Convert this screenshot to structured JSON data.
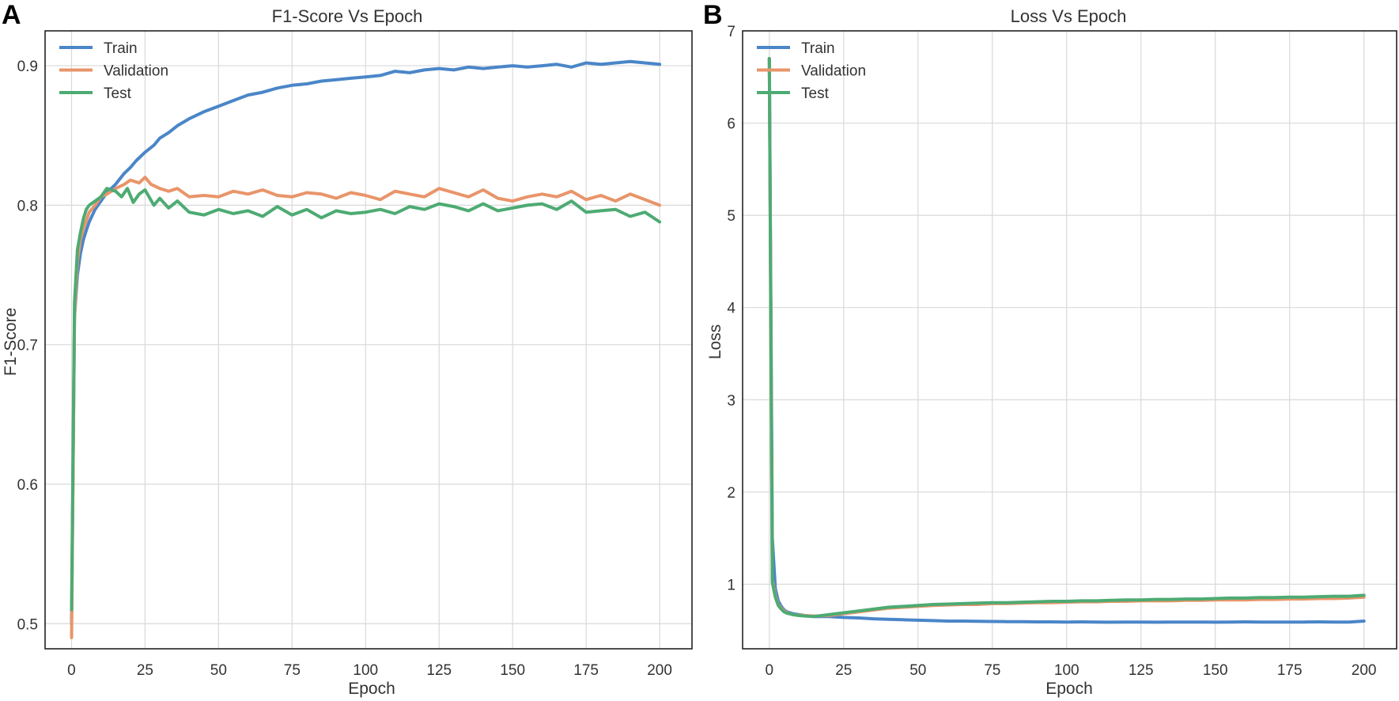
{
  "chart_data": [
    {
      "type": "line",
      "panel": "A",
      "title": "F1-Score Vs Epoch",
      "xlabel": "Epoch",
      "ylabel": "F1-Score",
      "xlim": [
        -9,
        211
      ],
      "ylim": [
        0.482,
        0.925
      ],
      "xticks": [
        0,
        25,
        50,
        75,
        100,
        125,
        150,
        175,
        200
      ],
      "yticks": [
        0.5,
        0.6,
        0.7,
        0.8,
        0.9
      ],
      "ytick_labels": [
        "0.5",
        "0.6",
        "0.7",
        "0.8",
        "0.9"
      ],
      "grid": true,
      "legend_position": "top-left",
      "series": [
        {
          "name": "Train",
          "color": "#4a86c8",
          "x": [
            0,
            1,
            2,
            3,
            4,
            5,
            6,
            8,
            10,
            12,
            15,
            18,
            20,
            22,
            25,
            28,
            30,
            33,
            36,
            40,
            45,
            50,
            55,
            60,
            65,
            70,
            75,
            80,
            85,
            90,
            95,
            100,
            105,
            110,
            115,
            120,
            125,
            130,
            135,
            140,
            145,
            150,
            155,
            160,
            165,
            170,
            175,
            180,
            185,
            190,
            195,
            200
          ],
          "y": [
            0.5,
            0.72,
            0.75,
            0.765,
            0.775,
            0.782,
            0.788,
            0.797,
            0.803,
            0.809,
            0.815,
            0.823,
            0.827,
            0.832,
            0.838,
            0.843,
            0.848,
            0.852,
            0.857,
            0.862,
            0.867,
            0.871,
            0.875,
            0.879,
            0.881,
            0.884,
            0.886,
            0.887,
            0.889,
            0.89,
            0.891,
            0.892,
            0.893,
            0.896,
            0.895,
            0.897,
            0.898,
            0.897,
            0.899,
            0.898,
            0.899,
            0.9,
            0.899,
            0.9,
            0.901,
            0.899,
            0.902,
            0.901,
            0.902,
            0.903,
            0.902,
            0.901
          ]
        },
        {
          "name": "Validation",
          "color": "#e8956a",
          "x": [
            0,
            1,
            2,
            3,
            4,
            5,
            6,
            8,
            10,
            12,
            15,
            18,
            20,
            23,
            25,
            27,
            30,
            33,
            36,
            40,
            45,
            50,
            55,
            60,
            65,
            70,
            75,
            80,
            85,
            90,
            95,
            100,
            105,
            110,
            115,
            120,
            125,
            130,
            135,
            140,
            145,
            150,
            155,
            160,
            165,
            170,
            175,
            180,
            185,
            190,
            195,
            200
          ],
          "y": [
            0.49,
            0.72,
            0.76,
            0.775,
            0.783,
            0.789,
            0.795,
            0.8,
            0.806,
            0.808,
            0.812,
            0.815,
            0.818,
            0.816,
            0.82,
            0.815,
            0.812,
            0.81,
            0.812,
            0.806,
            0.807,
            0.806,
            0.81,
            0.808,
            0.811,
            0.807,
            0.806,
            0.809,
            0.808,
            0.805,
            0.809,
            0.807,
            0.804,
            0.81,
            0.808,
            0.806,
            0.812,
            0.809,
            0.806,
            0.811,
            0.805,
            0.803,
            0.806,
            0.808,
            0.806,
            0.81,
            0.804,
            0.807,
            0.803,
            0.808,
            0.804,
            0.8
          ]
        },
        {
          "name": "Test",
          "color": "#4dab73",
          "x": [
            0,
            1,
            2,
            3,
            4,
            5,
            6,
            8,
            10,
            12,
            15,
            17,
            19,
            21,
            23,
            25,
            28,
            30,
            33,
            36,
            40,
            45,
            50,
            55,
            60,
            65,
            70,
            75,
            80,
            85,
            90,
            95,
            100,
            105,
            110,
            115,
            120,
            125,
            130,
            135,
            140,
            145,
            150,
            155,
            160,
            165,
            170,
            175,
            180,
            185,
            190,
            195,
            200
          ],
          "y": [
            0.51,
            0.73,
            0.768,
            0.78,
            0.79,
            0.797,
            0.8,
            0.803,
            0.806,
            0.812,
            0.81,
            0.806,
            0.812,
            0.802,
            0.808,
            0.811,
            0.8,
            0.805,
            0.798,
            0.803,
            0.795,
            0.793,
            0.797,
            0.794,
            0.796,
            0.792,
            0.799,
            0.793,
            0.797,
            0.791,
            0.796,
            0.794,
            0.795,
            0.797,
            0.794,
            0.799,
            0.797,
            0.801,
            0.799,
            0.796,
            0.801,
            0.796,
            0.798,
            0.8,
            0.801,
            0.797,
            0.803,
            0.795,
            0.796,
            0.797,
            0.792,
            0.795,
            0.788
          ]
        }
      ]
    },
    {
      "type": "line",
      "panel": "B",
      "title": "Loss Vs Epoch",
      "xlabel": "Epoch",
      "ylabel": "Loss",
      "xlim": [
        -9,
        211
      ],
      "ylim": [
        0.3,
        7.0
      ],
      "xticks": [
        0,
        25,
        50,
        75,
        100,
        125,
        150,
        175,
        200
      ],
      "yticks": [
        1,
        2,
        3,
        4,
        5,
        6,
        7
      ],
      "ytick_labels": [
        "1",
        "2",
        "3",
        "4",
        "5",
        "6",
        "7"
      ],
      "grid": true,
      "legend_position": "top-left",
      "series": [
        {
          "name": "Train",
          "color": "#4a86c8",
          "x": [
            0,
            1,
            2,
            3,
            4,
            5,
            6,
            8,
            10,
            12,
            15,
            20,
            25,
            30,
            35,
            40,
            45,
            50,
            55,
            60,
            65,
            70,
            75,
            80,
            85,
            90,
            95,
            100,
            105,
            110,
            115,
            120,
            125,
            130,
            135,
            140,
            145,
            150,
            155,
            160,
            165,
            170,
            175,
            180,
            185,
            190,
            195,
            200
          ],
          "y": [
            6.7,
            1.5,
            0.95,
            0.82,
            0.76,
            0.72,
            0.7,
            0.68,
            0.67,
            0.66,
            0.65,
            0.65,
            0.64,
            0.635,
            0.625,
            0.62,
            0.615,
            0.61,
            0.605,
            0.6,
            0.6,
            0.598,
            0.596,
            0.594,
            0.594,
            0.592,
            0.592,
            0.59,
            0.592,
            0.59,
            0.588,
            0.59,
            0.59,
            0.588,
            0.59,
            0.59,
            0.59,
            0.588,
            0.59,
            0.592,
            0.59,
            0.59,
            0.59,
            0.59,
            0.592,
            0.59,
            0.59,
            0.6
          ]
        },
        {
          "name": "Validation",
          "color": "#e8956a",
          "x": [
            0,
            1,
            2,
            3,
            4,
            5,
            6,
            8,
            10,
            12,
            15,
            20,
            25,
            30,
            35,
            40,
            45,
            50,
            55,
            60,
            65,
            70,
            75,
            80,
            85,
            90,
            95,
            100,
            105,
            110,
            115,
            120,
            125,
            130,
            135,
            140,
            145,
            150,
            155,
            160,
            165,
            170,
            175,
            180,
            185,
            190,
            195,
            200
          ],
          "y": [
            6.7,
            1.05,
            0.88,
            0.78,
            0.74,
            0.71,
            0.69,
            0.67,
            0.665,
            0.66,
            0.655,
            0.66,
            0.68,
            0.7,
            0.72,
            0.74,
            0.75,
            0.76,
            0.77,
            0.775,
            0.78,
            0.78,
            0.79,
            0.79,
            0.795,
            0.8,
            0.8,
            0.805,
            0.81,
            0.81,
            0.815,
            0.815,
            0.82,
            0.82,
            0.82,
            0.825,
            0.825,
            0.83,
            0.83,
            0.83,
            0.835,
            0.835,
            0.84,
            0.84,
            0.845,
            0.845,
            0.85,
            0.86
          ]
        },
        {
          "name": "Test",
          "color": "#4dab73",
          "x": [
            0,
            1,
            2,
            3,
            4,
            5,
            6,
            8,
            10,
            12,
            15,
            20,
            25,
            30,
            35,
            40,
            45,
            50,
            55,
            60,
            65,
            70,
            75,
            80,
            85,
            90,
            95,
            100,
            105,
            110,
            115,
            120,
            125,
            130,
            135,
            140,
            145,
            150,
            155,
            160,
            165,
            170,
            175,
            180,
            185,
            190,
            195,
            200
          ],
          "y": [
            6.7,
            1.02,
            0.86,
            0.77,
            0.73,
            0.7,
            0.685,
            0.67,
            0.66,
            0.655,
            0.65,
            0.67,
            0.69,
            0.71,
            0.73,
            0.75,
            0.76,
            0.77,
            0.78,
            0.785,
            0.79,
            0.795,
            0.8,
            0.8,
            0.805,
            0.81,
            0.815,
            0.815,
            0.82,
            0.82,
            0.825,
            0.83,
            0.83,
            0.835,
            0.835,
            0.84,
            0.84,
            0.845,
            0.85,
            0.85,
            0.855,
            0.855,
            0.86,
            0.86,
            0.865,
            0.87,
            0.87,
            0.88
          ]
        }
      ]
    }
  ]
}
